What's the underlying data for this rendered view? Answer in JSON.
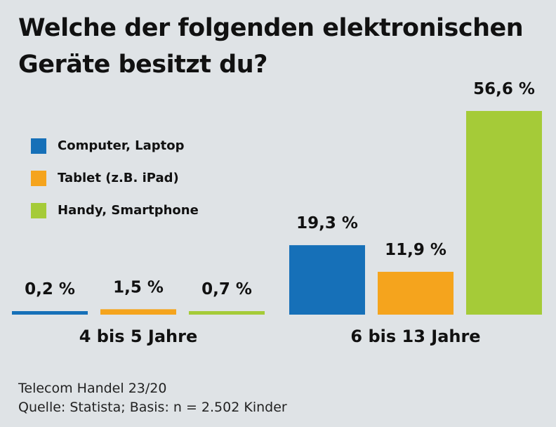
{
  "title_lines": [
    "Welche der folgenden elektronischen",
    "Geräte besitzt du?"
  ],
  "colors": {
    "computer": "#1670b8",
    "tablet": "#f5a41d",
    "handy": "#a5cb38",
    "background": "#dfe3e6"
  },
  "source_lines": [
    "Telecom Handel 23/20",
    "Quelle: Statista; Basis: n = 2.502 Kinder"
  ],
  "chart_data": {
    "type": "bar",
    "categories": [
      "4 bis 5 Jahre",
      "6 bis 13 Jahre"
    ],
    "series": [
      {
        "name": "Computer, Laptop",
        "values": [
          0.2,
          19.3
        ],
        "labels": [
          "0,2 %",
          "19,3 %"
        ],
        "color": "#1670b8"
      },
      {
        "name": "Tablet (z.B. iPad)",
        "values": [
          1.5,
          11.9
        ],
        "labels": [
          "1,5 %",
          "11,9 %"
        ],
        "color": "#f5a41d"
      },
      {
        "name": "Handy, Smartphone",
        "values": [
          0.7,
          56.6
        ],
        "labels": [
          "0,7 %",
          "56,6 %"
        ],
        "color": "#a5cb38"
      }
    ],
    "ylim": [
      0,
      56.6
    ],
    "legend_position": "top-left",
    "grid": false,
    "xlabel": "",
    "ylabel": ""
  }
}
